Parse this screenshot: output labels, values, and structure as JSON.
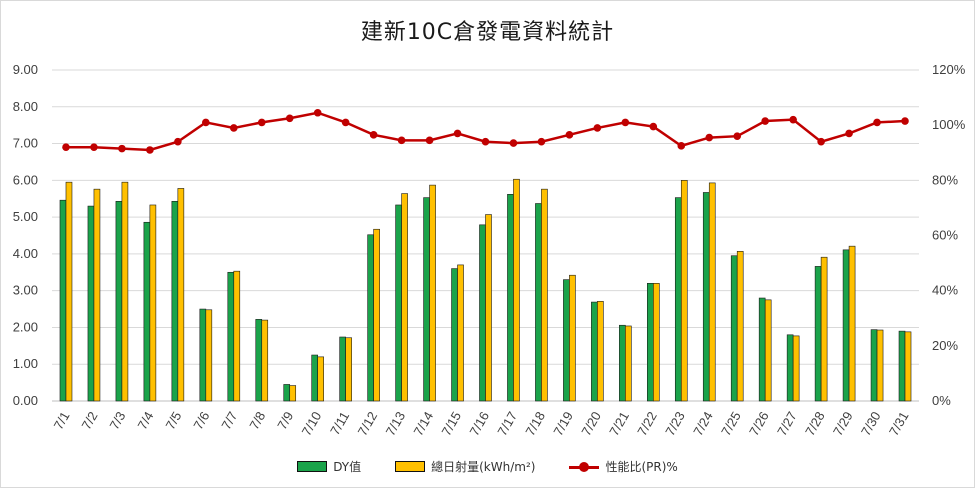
{
  "chart_data": {
    "type": "bar",
    "title": "建新10C倉發電資料統計",
    "categories": [
      "7/1",
      "7/2",
      "7/3",
      "7/4",
      "7/5",
      "7/6",
      "7/7",
      "7/8",
      "7/9",
      "7/10",
      "7/11",
      "7/12",
      "7/13",
      "7/14",
      "7/15",
      "7/16",
      "7/17",
      "7/18",
      "7/19",
      "7/20",
      "7/21",
      "7/22",
      "7/23",
      "7/24",
      "7/25",
      "7/26",
      "7/27",
      "7/28",
      "7/29",
      "7/30",
      "7/31"
    ],
    "series": [
      {
        "name": "DY值",
        "type": "bar",
        "axis": "left",
        "color": "#1aa34a",
        "values": [
          5.46,
          5.3,
          5.43,
          4.86,
          5.43,
          2.5,
          3.5,
          2.22,
          0.45,
          1.25,
          1.74,
          4.52,
          5.33,
          5.53,
          3.6,
          4.79,
          5.62,
          5.37,
          3.3,
          2.69,
          2.06,
          3.2,
          5.53,
          5.67,
          3.95,
          2.8,
          1.8,
          3.66,
          4.11,
          1.94,
          1.9
        ]
      },
      {
        "name": "總日射量(kWh/m²)",
        "type": "bar",
        "axis": "left",
        "color": "#ffc000",
        "values": [
          5.95,
          5.76,
          5.95,
          5.33,
          5.78,
          2.48,
          3.53,
          2.2,
          0.42,
          1.2,
          1.72,
          4.67,
          5.64,
          5.87,
          3.7,
          5.07,
          6.03,
          5.76,
          3.42,
          2.71,
          2.04,
          3.2,
          6.0,
          5.93,
          4.07,
          2.75,
          1.77,
          3.91,
          4.21,
          1.93,
          1.88
        ]
      },
      {
        "name": "性能比(PR)%",
        "type": "line",
        "axis": "right",
        "color": "#c00000",
        "values": [
          92,
          92,
          91.5,
          91,
          94,
          101,
          99,
          101,
          102.5,
          104.5,
          101,
          96.5,
          94.5,
          94.5,
          97,
          94,
          93.5,
          94,
          96.5,
          99,
          101,
          99.5,
          92.5,
          95.5,
          96,
          101.5,
          102,
          94,
          97,
          101,
          101.5
        ]
      }
    ],
    "y_left": {
      "min": 0,
      "max": 9,
      "step": 1,
      "tick_labels": [
        "0.00",
        "1.00",
        "2.00",
        "3.00",
        "4.00",
        "5.00",
        "6.00",
        "7.00",
        "8.00",
        "9.00"
      ]
    },
    "y_right": {
      "min": 0,
      "max": 120,
      "step": 20,
      "tick_labels": [
        "0%",
        "20%",
        "40%",
        "60%",
        "80%",
        "100%",
        "120%"
      ]
    },
    "grid": true,
    "legend_position": "bottom"
  }
}
